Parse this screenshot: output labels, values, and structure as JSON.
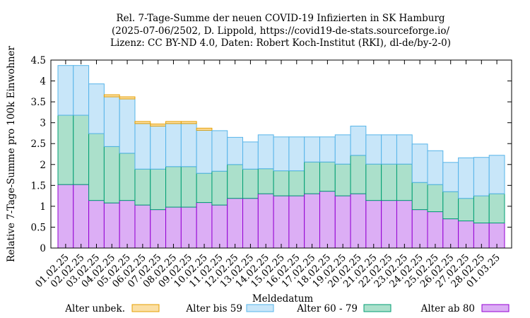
{
  "chart_data": {
    "type": "bar",
    "stacked": true,
    "title": [
      "Rel. 7-Tage-Summe der neuen COVID-19 Infizierten in SK Hamburg",
      "(2025-07-06/2502, D. Lippold, https://covid19-de-stats.sourceforge.io/",
      "Lizenz: CC BY-ND 4.0, Daten: Robert Koch-Institut (RKI), dl-de/by-2-0)"
    ],
    "xlabel": "Meldedatum",
    "ylabel": "Relative 7-Tage-Summe pro 100k Einwohner",
    "ylim": [
      0,
      4.5
    ],
    "yticks": [
      "0",
      "0.5",
      "1",
      "1.5",
      "2",
      "2.5",
      "3",
      "3.5",
      "4",
      "4.5"
    ],
    "grid": false,
    "legend_position": "bottom",
    "categories": [
      "01.02.25",
      "02.02.25",
      "03.02.25",
      "04.02.25",
      "05.02.25",
      "06.02.25",
      "07.02.25",
      "08.02.25",
      "09.02.25",
      "10.02.25",
      "11.02.25",
      "12.02.25",
      "13.02.25",
      "14.02.25",
      "15.02.25",
      "16.02.25",
      "17.02.25",
      "18.02.25",
      "19.02.25",
      "20.02.25",
      "21.02.25",
      "22.02.25",
      "23.02.25",
      "24.02.25",
      "25.02.25",
      "26.02.25",
      "27.02.25",
      "28.02.25",
      "01.03.25"
    ],
    "series": [
      {
        "name": "Alter ab 80",
        "fill": "#dcaef5",
        "stroke": "#9400d3",
        "values": [
          1.52,
          1.52,
          1.14,
          1.08,
          1.14,
          1.03,
          0.92,
          0.98,
          0.98,
          1.09,
          1.03,
          1.19,
          1.19,
          1.3,
          1.25,
          1.25,
          1.3,
          1.36,
          1.25,
          1.3,
          1.14,
          1.14,
          1.14,
          0.92,
          0.87,
          0.7,
          0.65,
          0.6,
          0.6
        ]
      },
      {
        "name": "Alter 60 - 79",
        "fill": "#abe0cb",
        "stroke": "#009e73",
        "values": [
          1.66,
          1.66,
          1.6,
          1.35,
          1.13,
          0.86,
          0.97,
          0.97,
          0.97,
          0.7,
          0.81,
          0.81,
          0.7,
          0.6,
          0.6,
          0.6,
          0.76,
          0.7,
          0.76,
          0.92,
          0.87,
          0.87,
          0.87,
          0.65,
          0.65,
          0.65,
          0.54,
          0.65,
          0.7
        ]
      },
      {
        "name": "Alter bis 59",
        "fill": "#c8e6f9",
        "stroke": "#56b4e9",
        "values": [
          1.19,
          1.19,
          1.19,
          1.19,
          1.3,
          1.09,
          1.03,
          1.03,
          1.03,
          1.03,
          0.97,
          0.65,
          0.65,
          0.81,
          0.81,
          0.81,
          0.6,
          0.6,
          0.7,
          0.7,
          0.7,
          0.7,
          0.7,
          0.92,
          0.81,
          0.7,
          0.97,
          0.92,
          0.92
        ]
      },
      {
        "name": "Alter unbek.",
        "fill": "#fbdfa4",
        "stroke": "#e69f00",
        "values": [
          0,
          0,
          0,
          0.05,
          0.05,
          0.05,
          0.05,
          0.05,
          0.05,
          0.05,
          0,
          0,
          0,
          0,
          0,
          0,
          0,
          0,
          0,
          0,
          0,
          0,
          0,
          0,
          0,
          0,
          0,
          0,
          0
        ]
      }
    ],
    "legend": [
      {
        "name": "Alter unbek.",
        "fill": "#fbdfa4",
        "stroke": "#e69f00"
      },
      {
        "name": "Alter bis 59",
        "fill": "#c8e6f9",
        "stroke": "#56b4e9"
      },
      {
        "name": "Alter 60 - 79",
        "fill": "#abe0cb",
        "stroke": "#009e73"
      },
      {
        "name": "Alter ab 80",
        "fill": "#dcaef5",
        "stroke": "#9400d3"
      }
    ]
  }
}
